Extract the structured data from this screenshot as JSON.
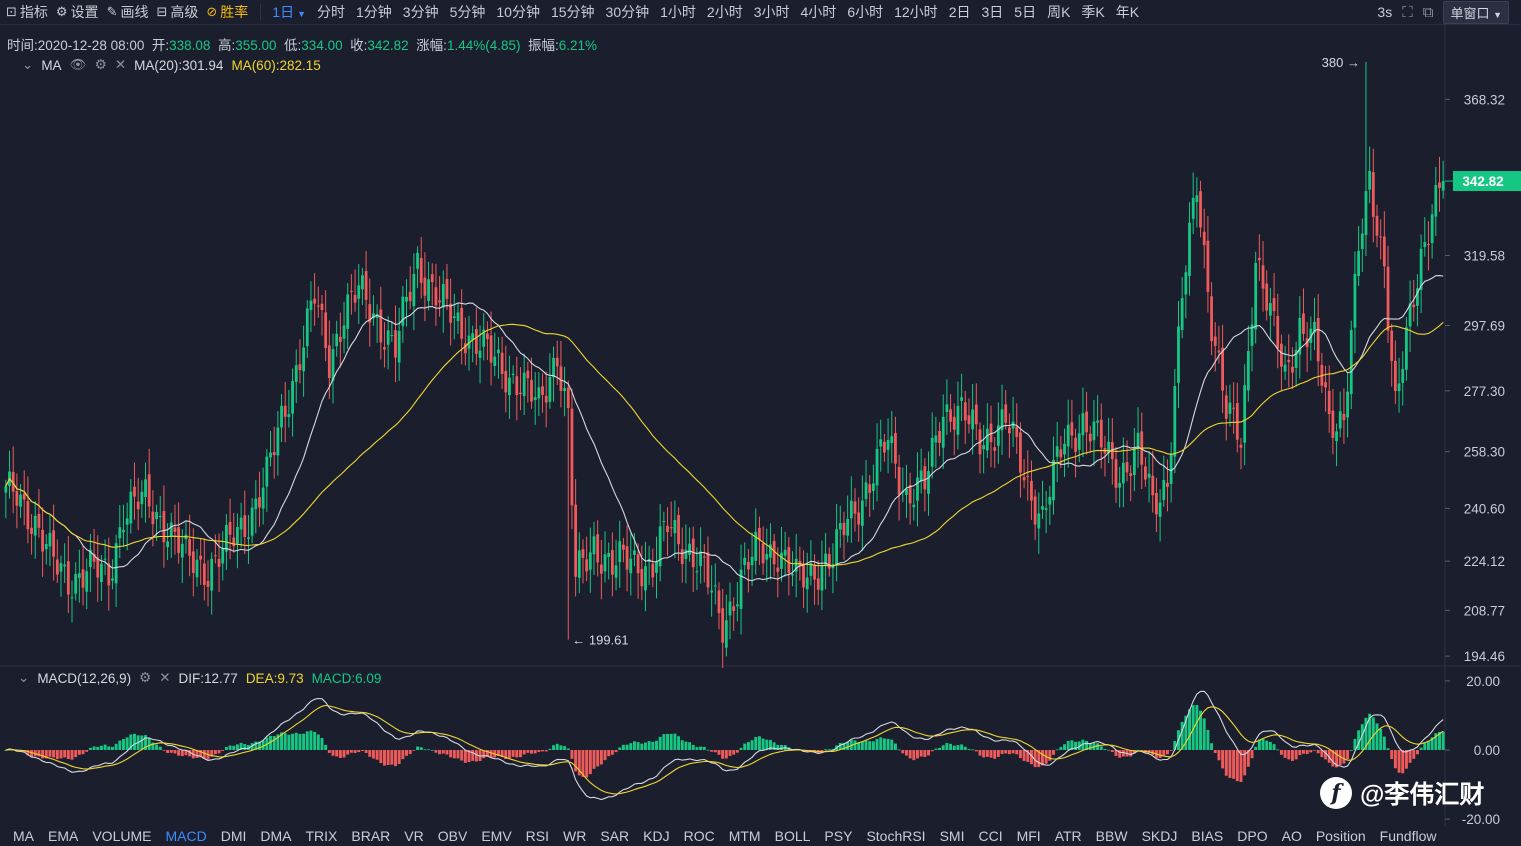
{
  "toolbar": {
    "tools": [
      {
        "icon": "chart-icon",
        "glyph": "⊡",
        "label": "指标"
      },
      {
        "icon": "gear-icon",
        "glyph": "⚙",
        "label": "设置"
      },
      {
        "icon": "pencil-icon",
        "glyph": "✎",
        "label": "画线"
      },
      {
        "icon": "briefcase-icon",
        "glyph": "⊟",
        "label": "高级"
      },
      {
        "icon": "win-rate-icon",
        "glyph": "⊘",
        "label": "胜率"
      }
    ],
    "periods": [
      "1日",
      "分时",
      "1分钟",
      "3分钟",
      "5分钟",
      "10分钟",
      "15分钟",
      "30分钟",
      "1小时",
      "2小时",
      "3小时",
      "4小时",
      "6小时",
      "12小时",
      "2日",
      "3日",
      "5日",
      "周K",
      "季K",
      "年K"
    ],
    "active_period": "1日",
    "refresh": "3s",
    "window_mode": "单窗口"
  },
  "info": {
    "time_label": "时间:",
    "time": "2020-12-28 08:00",
    "open_label": "开:",
    "open": "338.08",
    "high_label": "高:",
    "high": "355.00",
    "low_label": "低:",
    "low": "334.00",
    "close_label": "收:",
    "close": "342.82",
    "change_label": "涨幅:",
    "change": "1.44%(4.85)",
    "amplitude_label": "振幅:",
    "amplitude": "6.21%"
  },
  "main_indicator": {
    "name": "MA",
    "ma20_label": "MA(20):301.94",
    "ma60_label": "MA(60):282.15"
  },
  "sub_indicator": {
    "name": "MACD(12,26,9)",
    "dif_label": "DIF:12.77",
    "dea_label": "DEA:9.73",
    "macd_label": "MACD:6.09"
  },
  "bottom_indicators": [
    "MA",
    "EMA",
    "VOLUME",
    "MACD",
    "DMI",
    "DMA",
    "TRIX",
    "BRAR",
    "VR",
    "OBV",
    "EMV",
    "RSI",
    "WR",
    "SAR",
    "KDJ",
    "ROC",
    "MTM",
    "BOLL",
    "PSY",
    "StochRSI",
    "SMI",
    "CCI",
    "MFI",
    "ATR",
    "BBW",
    "SKDJ",
    "BIAS",
    "DPO",
    "AO",
    "Position",
    "Fundflow"
  ],
  "active_indicator": "MACD",
  "watermark": {
    "logo": "f",
    "text": "@李伟汇财"
  },
  "colors": {
    "up": "#16c784",
    "down": "#ef5b5b",
    "ma20": "#d6d8e0",
    "ma60": "#f0d530",
    "background": "#1b1e2d",
    "accent": "#3d8bfd",
    "price_tag": "#16c784"
  },
  "chart_data": [
    {
      "type": "candlestick",
      "series_names": [
        "MA(20)",
        "MA(60)"
      ],
      "y_ticks": [
        194.46,
        208.77,
        224.12,
        240.6,
        258.3,
        277.3,
        297.69,
        319.58,
        342.82,
        368.32
      ],
      "y_tick_labels": [
        "194.46",
        "208.77",
        "224.12",
        "240.60",
        "258.30",
        "277.30",
        "297.69",
        "319.58",
        "342.82",
        "368.32"
      ],
      "ylim": [
        192,
        375
      ],
      "last_price": 342.82,
      "last_price_label": "342.82",
      "max_marker": {
        "value": 380,
        "label": "380 →",
        "index": 370
      },
      "min_marker": {
        "value": 199.61,
        "label": "← 199.61",
        "index": 153
      },
      "anchor_closes": [
        [
          0,
          245
        ],
        [
          3,
          244
        ],
        [
          8,
          237
        ],
        [
          13,
          223
        ],
        [
          17,
          218
        ],
        [
          22,
          222
        ],
        [
          28,
          219
        ],
        [
          32,
          240
        ],
        [
          38,
          243
        ],
        [
          44,
          235
        ],
        [
          49,
          225
        ],
        [
          55,
          222
        ],
        [
          60,
          228
        ],
        [
          66,
          238
        ],
        [
          71,
          250
        ],
        [
          75,
          268
        ],
        [
          80,
          289
        ],
        [
          84,
          306
        ],
        [
          88,
          287
        ],
        [
          92,
          302
        ],
        [
          96,
          308
        ],
        [
          101,
          300
        ],
        [
          106,
          290
        ],
        [
          112,
          318
        ],
        [
          118,
          305
        ],
        [
          123,
          298
        ],
        [
          128,
          293
        ],
        [
          134,
          285
        ],
        [
          140,
          280
        ],
        [
          145,
          272
        ],
        [
          150,
          290
        ],
        [
          153,
          268
        ],
        [
          155,
          218
        ],
        [
          160,
          230
        ],
        [
          165,
          222
        ],
        [
          170,
          225
        ],
        [
          176,
          222
        ],
        [
          180,
          235
        ],
        [
          186,
          228
        ],
        [
          190,
          220
        ],
        [
          195,
          205
        ],
        [
          200,
          218
        ],
        [
          205,
          229
        ],
        [
          210,
          227
        ],
        [
          215,
          218
        ],
        [
          220,
          222
        ],
        [
          225,
          224
        ],
        [
          229,
          238
        ],
        [
          235,
          248
        ],
        [
          240,
          262
        ],
        [
          245,
          245
        ],
        [
          250,
          247
        ],
        [
          255,
          272
        ],
        [
          260,
          270
        ],
        [
          265,
          262
        ],
        [
          272,
          268
        ],
        [
          278,
          248
        ],
        [
          282,
          238
        ],
        [
          288,
          262
        ],
        [
          293,
          268
        ],
        [
          298,
          260
        ],
        [
          303,
          252
        ],
        [
          308,
          258
        ],
        [
          312,
          242
        ],
        [
          316,
          250
        ],
        [
          320,
          306
        ],
        [
          324,
          342
        ],
        [
          328,
          300
        ],
        [
          332,
          270
        ],
        [
          336,
          262
        ],
        [
          340,
          320
        ],
        [
          344,
          300
        ],
        [
          348,
          282
        ],
        [
          352,
          298
        ],
        [
          356,
          292
        ],
        [
          360,
          268
        ],
        [
          364,
          270
        ],
        [
          368,
          320
        ],
        [
          371,
          342
        ],
        [
          375,
          318
        ],
        [
          378,
          272
        ],
        [
          381,
          292
        ],
        [
          385,
          320
        ],
        [
          388,
          335
        ],
        [
          391,
          342.82
        ]
      ],
      "candle_count": 392
    },
    {
      "type": "macd",
      "params": "(12,26,9)",
      "dif": 12.77,
      "dea": 9.73,
      "macd": 6.09,
      "y_ticks": [
        20.0,
        0.0,
        -20.0
      ],
      "y_tick_labels": [
        "20.00",
        "0.00",
        "-20.00"
      ],
      "ylim": [
        -22,
        22
      ]
    }
  ]
}
